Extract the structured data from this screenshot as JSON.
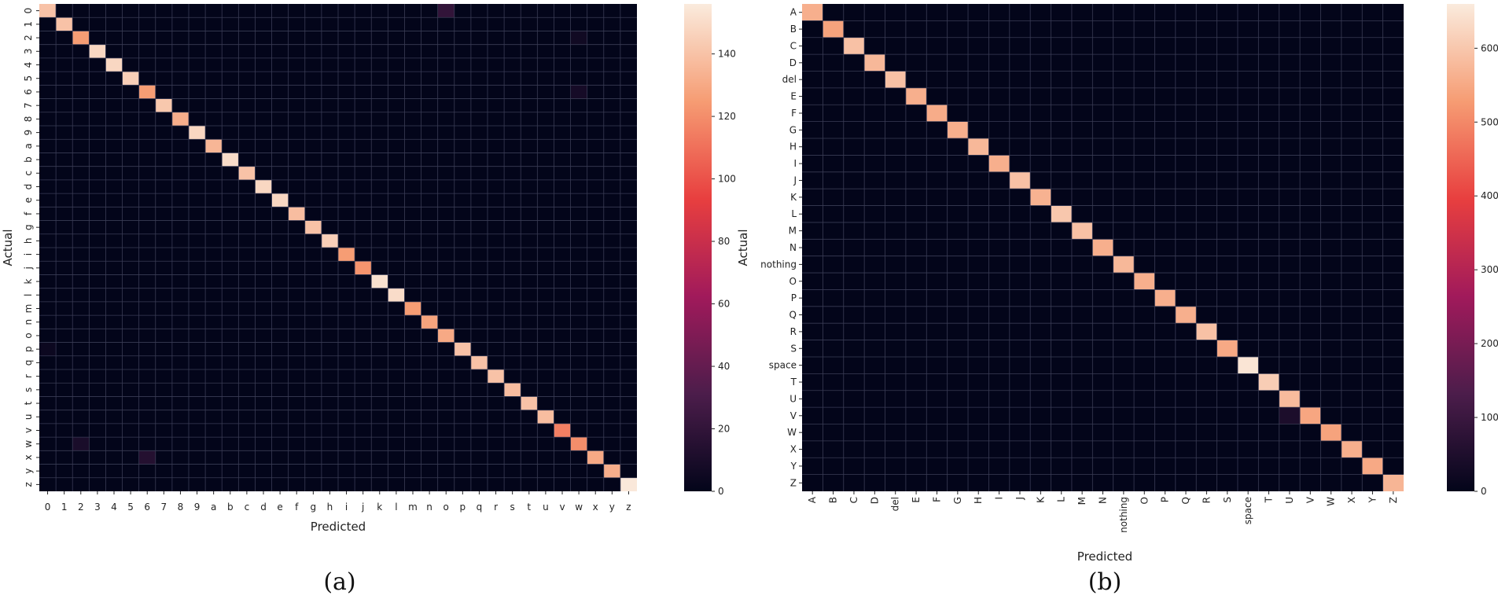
{
  "chart_data": [
    {
      "type": "heatmap",
      "caption": "(a)",
      "xlabel": "Predicted",
      "ylabel": "Actual",
      "labels": [
        "0",
        "1",
        "2",
        "3",
        "4",
        "5",
        "6",
        "7",
        "8",
        "9",
        "a",
        "b",
        "c",
        "d",
        "e",
        "f",
        "g",
        "h",
        "i",
        "j",
        "k",
        "l",
        "m",
        "n",
        "o",
        "p",
        "q",
        "r",
        "s",
        "t",
        "u",
        "v",
        "w",
        "x",
        "y",
        "z"
      ],
      "diagonal": [
        140,
        140,
        125,
        148,
        148,
        145,
        125,
        142,
        132,
        148,
        135,
        150,
        140,
        148,
        148,
        138,
        140,
        145,
        125,
        122,
        152,
        150,
        125,
        128,
        130,
        140,
        140,
        140,
        138,
        140,
        138,
        115,
        120,
        130,
        132,
        155
      ],
      "off_diagonal": [
        {
          "actual": "0",
          "predicted": "o",
          "value": 20
        },
        {
          "actual": "2",
          "predicted": "w",
          "value": 6
        },
        {
          "actual": "6",
          "predicted": "w",
          "value": 8
        },
        {
          "actual": "w",
          "predicted": "2",
          "value": 10
        },
        {
          "actual": "x",
          "predicted": "6",
          "value": 14
        },
        {
          "actual": "p",
          "predicted": "0",
          "value": 4
        }
      ],
      "colorbar": {
        "min": 0,
        "max": 156,
        "ticks": [
          0,
          20,
          40,
          60,
          80,
          100,
          120,
          140
        ]
      },
      "grid": true
    },
    {
      "type": "heatmap",
      "caption": "(b)",
      "xlabel": "Predicted",
      "ylabel": "Actual",
      "labels": [
        "A",
        "B",
        "C",
        "D",
        "del",
        "E",
        "F",
        "G",
        "H",
        "I",
        "J",
        "K",
        "L",
        "M",
        "N",
        "nothing",
        "O",
        "P",
        "Q",
        "R",
        "S",
        "space",
        "T",
        "U",
        "V",
        "W",
        "X",
        "Y",
        "Z"
      ],
      "diagonal": [
        560,
        540,
        590,
        575,
        590,
        560,
        555,
        560,
        575,
        560,
        590,
        565,
        600,
        590,
        560,
        575,
        560,
        560,
        560,
        590,
        550,
        650,
        610,
        580,
        545,
        540,
        560,
        550,
        570
      ],
      "off_diagonal": [
        {
          "actual": "V",
          "predicted": "U",
          "value": 45
        }
      ],
      "colorbar": {
        "min": 0,
        "max": 660,
        "ticks": [
          0,
          100,
          200,
          300,
          400,
          500,
          600
        ]
      },
      "grid": true
    }
  ]
}
